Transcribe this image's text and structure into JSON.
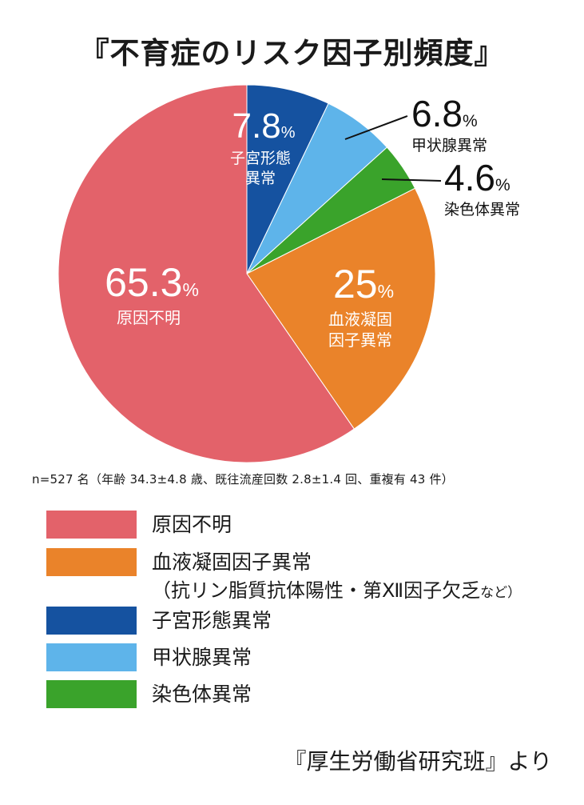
{
  "title": "『不育症のリスク因子別頻度』",
  "note": "n=527 名（年齢 34.3±4.8 歳、既往流産回数 2.8±1.4 回、重複有 43 件）",
  "source": "『厚生労働省研究班』より",
  "chart_data": {
    "type": "pie",
    "title": "『不育症のリスク因子別頻度』",
    "legend_placement": "bottom",
    "slices": [
      {
        "label": "子宮形態異常",
        "value": 7.8,
        "value_text": "7.8",
        "unit": "%",
        "color": "#1552a0"
      },
      {
        "label": "甲状腺異常",
        "value": 6.8,
        "value_text": "6.8",
        "unit": "%",
        "color": "#5eb4ea"
      },
      {
        "label": "染色体異常",
        "value": 4.6,
        "value_text": "4.6",
        "unit": "%",
        "color": "#3aa32b"
      },
      {
        "label": "血液凝固因子異常",
        "value": 25,
        "value_text": "25",
        "unit": "%",
        "color": "#ea832a"
      },
      {
        "label": "原因不明",
        "value": 65.3,
        "value_text": "65.3",
        "unit": "%",
        "color": "#e3626a"
      }
    ]
  },
  "legend": [
    {
      "label": "原因不明",
      "color": "#e3626a"
    },
    {
      "label": "血液凝固因子異常",
      "sub": "（抗リン脂質抗体陽性・第Ⅻ因子欠乏",
      "sub_small": "など）",
      "color": "#ea832a"
    },
    {
      "label": "子宮形態異常",
      "color": "#1552a0"
    },
    {
      "label": "甲状腺異常",
      "color": "#5eb4ea"
    },
    {
      "label": "染色体異常",
      "color": "#3aa32b"
    }
  ]
}
